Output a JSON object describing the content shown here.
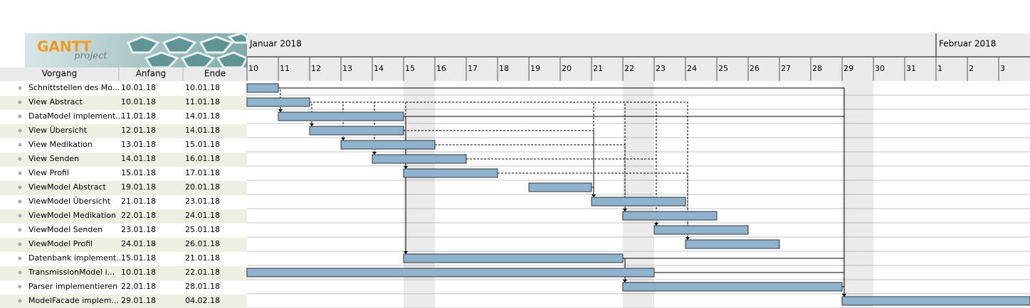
{
  "logo": {
    "title": "GANTT",
    "subtitle": "project"
  },
  "table": {
    "columns": [
      "Vorgang",
      "Anfang",
      "Ende"
    ],
    "rows": [
      [
        "Schnittstellen des Mo...",
        "10.01.18",
        "10.01.18"
      ],
      [
        "View Abstract",
        "10.01.18",
        "11.01.18"
      ],
      [
        "DataModel implement...",
        "11.01.18",
        "14.01.18"
      ],
      [
        "View Übersicht",
        "12.01.18",
        "14.01.18"
      ],
      [
        "View Medikation",
        "13.01.18",
        "15.01.18"
      ],
      [
        "View Senden",
        "14.01.18",
        "16.01.18"
      ],
      [
        "View Profil",
        "15.01.18",
        "17.01.18"
      ],
      [
        "ViewModel Abstract",
        "19.01.18",
        "20.01.18"
      ],
      [
        "ViewModel Übersicht",
        "21.01.18",
        "23.01.18"
      ],
      [
        "ViewModel Medikation",
        "22.01.18",
        "24.01.18"
      ],
      [
        "ViewModel Senden",
        "23.01.18",
        "25.01.18"
      ],
      [
        "ViewModel Profil",
        "24.01.18",
        "26.01.18"
      ],
      [
        "Datenbank implement...",
        "15.01.18",
        "21.01.18"
      ],
      [
        "TransmissionModel i...",
        "10.01.18",
        "22.01.18"
      ],
      [
        "Parser implementieren",
        "22.01.18",
        "28.01.18"
      ],
      [
        "ModelFacade implem...",
        "29.01.18",
        "04.02.18"
      ]
    ]
  },
  "timeline": {
    "months": [
      "Januar 2018",
      "Februar 2018"
    ],
    "days": [
      "10",
      "11",
      "12",
      "13",
      "14",
      "15",
      "16",
      "17",
      "18",
      "19",
      "20",
      "21",
      "22",
      "23",
      "24",
      "25",
      "26",
      "27",
      "28",
      "29",
      "30",
      "31",
      "1",
      "2",
      "3"
    ]
  }
}
